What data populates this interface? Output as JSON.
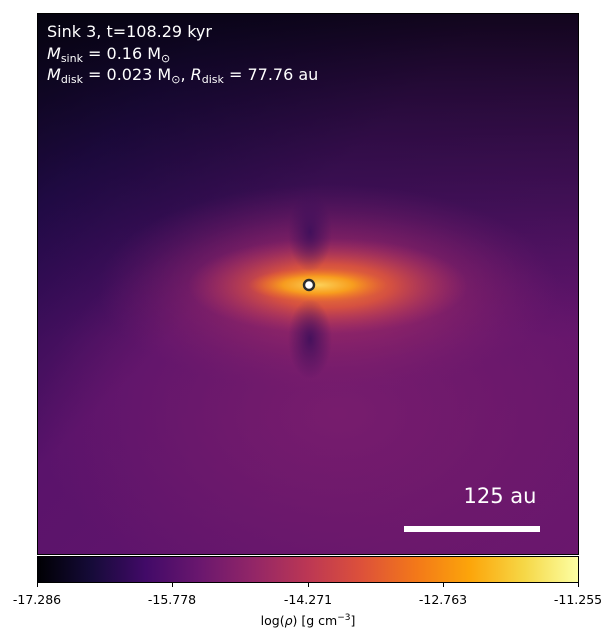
{
  "annotation": {
    "sink_line": "Sink 3, t=108.29 kyr",
    "m_sink_symbol": "M",
    "m_sink_sub": "sink",
    "m_sink_value": " = 0.16 M",
    "m_sink_sun": "⊙",
    "m_disk_symbol": "M",
    "m_disk_sub": "disk",
    "m_disk_value": " = 0.023 M",
    "m_disk_sun": "⊙",
    "r_disk_symbol": "R",
    "r_disk_sub": "disk",
    "r_disk_value": " = 77.76 au"
  },
  "scalebar": {
    "label": "125 au"
  },
  "colorbar": {
    "ticks": [
      "-17.286",
      "-15.778",
      "-14.271",
      "-12.763",
      "-11.255"
    ],
    "label_prefix": "log(",
    "label_rho": "ρ",
    "label_units": ") [g cm",
    "label_exp": "−3",
    "label_suffix": "]",
    "colormap": "inferno"
  },
  "sink_marker": {
    "color": "#ffffff",
    "edge": "#2b2b2b"
  }
}
